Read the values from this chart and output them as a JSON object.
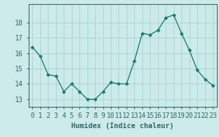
{
  "x": [
    0,
    1,
    2,
    3,
    4,
    5,
    6,
    7,
    8,
    9,
    10,
    11,
    12,
    13,
    14,
    15,
    16,
    17,
    18,
    19,
    20,
    21,
    22,
    23
  ],
  "y": [
    16.4,
    15.8,
    14.6,
    14.5,
    13.5,
    14.0,
    13.5,
    13.0,
    13.0,
    13.5,
    14.1,
    14.0,
    14.0,
    15.5,
    17.3,
    17.2,
    17.5,
    18.3,
    18.5,
    17.3,
    16.2,
    14.9,
    14.3,
    13.9
  ],
  "line_color": "#1a7a6e",
  "marker": "D",
  "marker_size": 2.5,
  "linewidth": 1.0,
  "bg_color": "#cceaea",
  "grid_color": "#aad4d4",
  "xlabel": "Humidex (Indice chaleur)",
  "xlabel_fontsize": 7.5,
  "tick_fontsize": 7.0,
  "ylim": [
    12.5,
    19.2
  ],
  "yticks": [
    13,
    14,
    15,
    16,
    17,
    18
  ],
  "xticks": [
    0,
    1,
    2,
    3,
    4,
    5,
    6,
    7,
    8,
    9,
    10,
    11,
    12,
    13,
    14,
    15,
    16,
    17,
    18,
    19,
    20,
    21,
    22,
    23
  ],
  "xtick_labels": [
    "0",
    "1",
    "2",
    "3",
    "4",
    "5",
    "6",
    "7",
    "8",
    "9",
    "10",
    "11",
    "12",
    "13",
    "14",
    "15",
    "16",
    "17",
    "18",
    "19",
    "20",
    "21",
    "22",
    "23"
  ],
  "spine_color": "#336666",
  "tick_color": "#336666"
}
